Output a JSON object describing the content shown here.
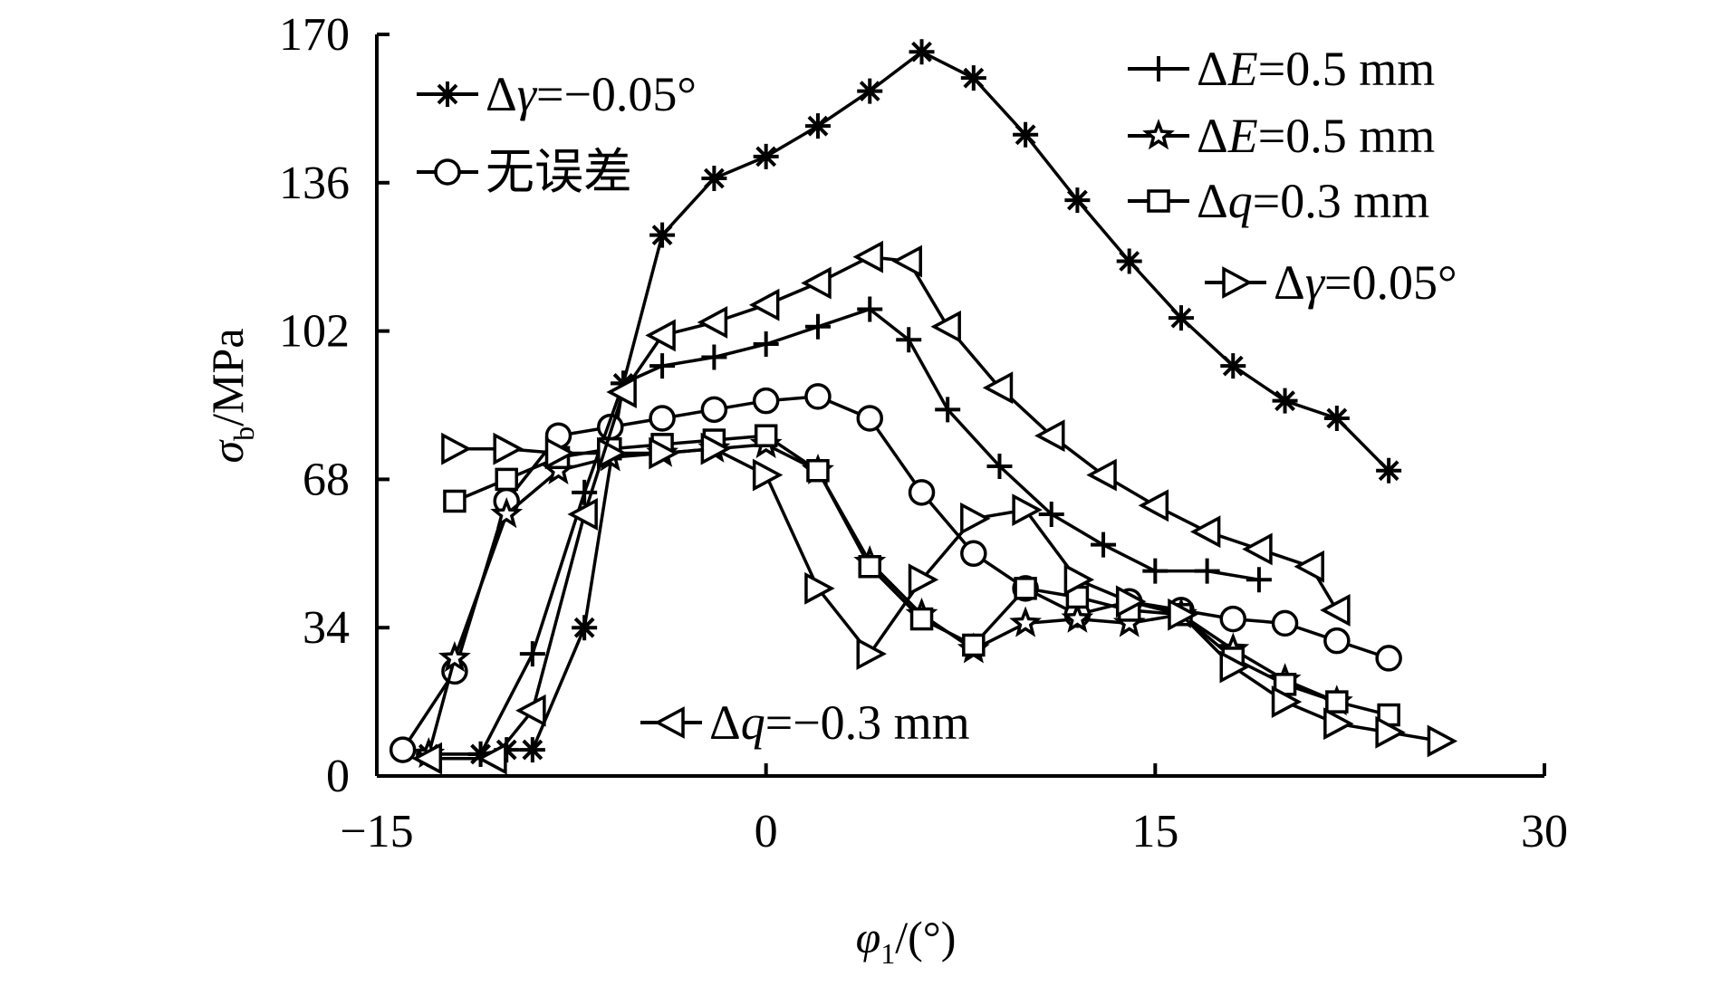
{
  "chart_data": {
    "type": "line",
    "xlabel_sym": "φ",
    "xlabel_sub": "1",
    "xlabel_unit": "/(°)",
    "ylabel_sym": "σ",
    "ylabel_sub": "b",
    "ylabel_unit": "/MPa",
    "xlim": [
      -15,
      30
    ],
    "ylim": [
      0,
      170
    ],
    "xticks": [
      -15,
      0,
      15,
      30
    ],
    "yticks": [
      0,
      34,
      68,
      102,
      136,
      170
    ],
    "grid": false,
    "series": [
      {
        "name": "Δγ=−0.05°",
        "name_parts": [
          "Δ",
          "γ",
          "=−0.05°"
        ],
        "marker": "asterisk",
        "x": [
          -13,
          -11,
          -10,
          -9,
          -7,
          -5.5,
          -4,
          -2,
          0,
          2,
          4,
          6,
          8,
          10,
          12,
          14,
          16,
          18,
          20,
          22,
          24
        ],
        "y": [
          5,
          5,
          6,
          6,
          34,
          90,
          124,
          137,
          142,
          149,
          157,
          166,
          160,
          147,
          132,
          118,
          105,
          94,
          86,
          82,
          70
        ]
      },
      {
        "name": "无误差",
        "name_parts": [
          "",
          "",
          "无误差"
        ],
        "marker": "circle",
        "x": [
          -14,
          -12,
          -10,
          -8,
          -6,
          -4,
          -2,
          0,
          2,
          4,
          6,
          8,
          10,
          12,
          14,
          16,
          18,
          20,
          22,
          24
        ],
        "y": [
          6,
          24,
          63,
          78,
          80,
          82,
          84,
          86,
          87,
          82,
          65,
          51,
          43,
          37,
          40,
          38,
          36,
          35,
          31,
          27
        ]
      },
      {
        "name": "ΔE=0.5 mm",
        "name_parts": [
          "Δ",
          "E",
          "=0.5 mm"
        ],
        "marker": "plus",
        "x": [
          -13,
          -11,
          -9,
          -7,
          -5.5,
          -4,
          -2,
          0,
          2,
          4,
          5.5,
          7,
          9,
          11,
          13,
          15,
          17,
          19
        ],
        "y": [
          5,
          5,
          28,
          65,
          90,
          94,
          96,
          99,
          103,
          107,
          100,
          84,
          71,
          60,
          53,
          47,
          47,
          45
        ]
      },
      {
        "name": "ΔE=0.5 mm",
        "name_parts": [
          "Δ",
          "E",
          "=0.5 mm"
        ],
        "marker": "star",
        "x": [
          -13,
          -12,
          -10,
          -8,
          -6,
          -4,
          -2,
          0,
          2,
          4,
          6,
          8,
          10,
          12,
          14,
          16,
          18,
          20,
          22
        ],
        "y": [
          5,
          27,
          60,
          70,
          73,
          74,
          75,
          76,
          70,
          49,
          37,
          29,
          35,
          36,
          35,
          37,
          29,
          22,
          17
        ]
      },
      {
        "name": "Δq=0.3 mm",
        "name_parts": [
          "Δ",
          "q",
          "=0.3 mm"
        ],
        "marker": "square",
        "x": [
          -12,
          -10,
          -8,
          -6,
          -4,
          -2,
          0,
          2,
          4,
          6,
          8,
          10,
          12,
          14,
          16,
          18,
          20,
          22,
          24
        ],
        "y": [
          63,
          68,
          73,
          75,
          76,
          77,
          78,
          70,
          48,
          36,
          30,
          43,
          41,
          38,
          37,
          27,
          21,
          17,
          14
        ]
      },
      {
        "name": "Δγ=0.05°",
        "name_parts": [
          "Δ",
          "γ",
          "=0.05°"
        ],
        "marker": "triangle-right",
        "x": [
          -12,
          -10,
          -8,
          -6,
          -4,
          -2,
          0,
          2,
          4,
          6,
          8,
          10,
          12,
          14,
          16,
          18,
          20,
          22,
          24,
          26
        ],
        "y": [
          75,
          75,
          74,
          74,
          74,
          75,
          69,
          43,
          28,
          45,
          59,
          61,
          45,
          40,
          37,
          25,
          17,
          12,
          10,
          8
        ]
      },
      {
        "name": "Δq=−0.3 mm",
        "name_parts": [
          "Δ",
          "q",
          "=−0.3 mm"
        ],
        "marker": "triangle-left",
        "x": [
          -13,
          -10.5,
          -9,
          -7,
          -5.5,
          -4,
          -2,
          0,
          2,
          4,
          5.5,
          7,
          9,
          11,
          13,
          15,
          17,
          19,
          21,
          22
        ],
        "y": [
          4,
          4,
          15,
          60,
          88,
          101,
          104,
          108,
          113,
          119,
          118,
          103,
          89,
          78,
          69,
          62,
          56,
          52,
          48,
          38
        ]
      }
    ]
  }
}
